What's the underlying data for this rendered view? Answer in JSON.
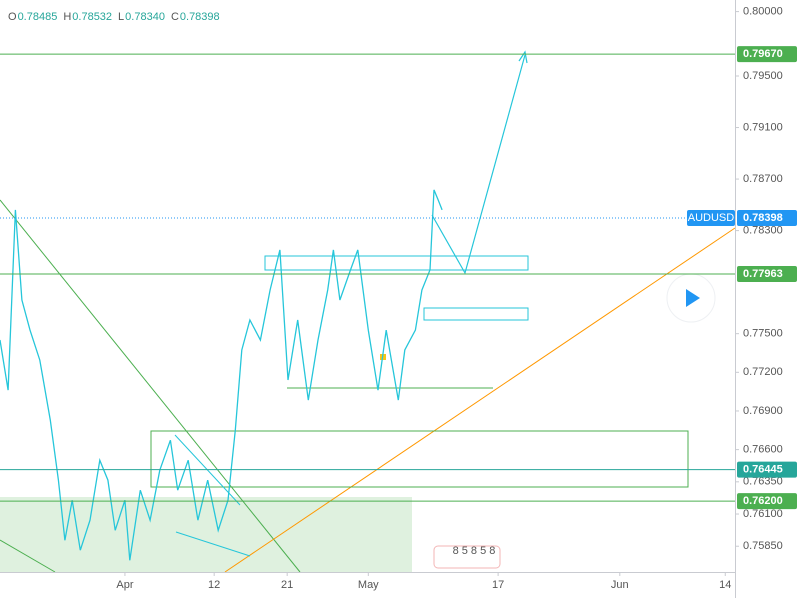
{
  "chart_data": {
    "type": "line",
    "symbol": "AUDUSD",
    "ohlc_header": [
      {
        "label": "O",
        "value": "0.78485"
      },
      {
        "label": "H",
        "value": "0.78532"
      },
      {
        "label": "L",
        "value": "0.78340"
      },
      {
        "label": "C",
        "value": "0.78398"
      }
    ],
    "x": [
      75.6,
      76.6,
      77.5,
      78.3,
      79.3,
      80.5,
      81.8,
      82.8,
      83.6,
      84.5,
      85.5,
      86.7,
      87.9,
      88.9,
      89.8,
      91.0,
      91.6,
      92.9,
      94.1,
      95.3,
      96.6,
      97.5,
      98.8,
      100.0,
      101.2,
      102.5,
      103.7,
      104.6,
      105.4,
      106.4,
      107.7,
      108.9,
      110.1,
      111.1,
      112.3,
      113.6,
      114.8,
      116.0,
      116.7,
      117.5,
      118.8,
      119.7,
      121.0,
      122.2,
      123.2,
      124.7,
      125.5,
      126.8,
      127.6,
      128.6,
      129.1,
      129.6,
      130.1
    ],
    "series": [
      {
        "name": "AUDUSD",
        "color": "#26c6da",
        "values": [
          0.77451,
          0.77062,
          0.78461,
          0.77761,
          0.77528,
          0.77295,
          0.76829,
          0.76363,
          0.75896,
          0.76207,
          0.75819,
          0.76052,
          0.76518,
          0.76363,
          0.75974,
          0.76207,
          0.75741,
          0.76285,
          0.76052,
          0.7644,
          0.76673,
          0.76285,
          0.76518,
          0.76052,
          0.76363,
          0.75974,
          0.76207,
          0.76751,
          0.77373,
          0.77606,
          0.77451,
          0.77839,
          0.7815,
          0.7714,
          0.77606,
          0.76984,
          0.77451,
          0.77839,
          0.7815,
          0.77761,
          0.77995,
          0.7815,
          0.77528,
          0.77062,
          0.77528,
          0.76984,
          0.77373,
          0.77528,
          0.77839,
          0.77995,
          0.78616,
          0.78539,
          0.78461
        ]
      }
    ],
    "xlim": [
      75.6,
      166.2
    ],
    "xticks": [
      {
        "value": 91,
        "label": "Apr"
      },
      {
        "value": 102,
        "label": "12"
      },
      {
        "value": 111,
        "label": "21"
      },
      {
        "value": 121,
        "label": "May"
      },
      {
        "value": 137,
        "label": "17"
      },
      {
        "value": 152,
        "label": "Jun"
      },
      {
        "value": 165,
        "label": "14"
      }
    ],
    "ylim": [
      0.7565,
      0.8009
    ],
    "yticks": [
      {
        "value": 0.8,
        "label": "0.80000"
      },
      {
        "value": 0.795,
        "label": "0.79500"
      },
      {
        "value": 0.791,
        "label": "0.79100"
      },
      {
        "value": 0.787,
        "label": "0.78700"
      },
      {
        "value": 0.783,
        "label": "0.78300"
      },
      {
        "value": 0.775,
        "label": "0.77500"
      },
      {
        "value": 0.772,
        "label": "0.77200"
      },
      {
        "value": 0.769,
        "label": "0.76900"
      },
      {
        "value": 0.766,
        "label": "0.76600"
      },
      {
        "value": 0.7635,
        "label": "0.76350"
      },
      {
        "value": 0.761,
        "label": "0.76100"
      },
      {
        "value": 0.7585,
        "label": "0.75850"
      }
    ],
    "levels": [
      {
        "value": 0.7967,
        "label": "0.79670",
        "color": "#4caf50"
      },
      {
        "value": 0.78398,
        "label": "0.78398",
        "color": "#2196f3"
      },
      {
        "value": 0.77963,
        "label": "0.77963",
        "color": "#4caf50"
      },
      {
        "value": 0.76445,
        "label": "0.76445",
        "color": "#26a69a"
      },
      {
        "value": 0.762,
        "label": "0.76200",
        "color": "#4caf50"
      }
    ],
    "events_label": "8 5 8 5 8"
  }
}
